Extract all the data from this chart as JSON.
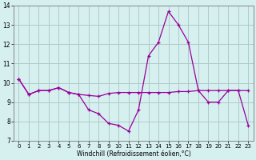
{
  "hours": [
    0,
    1,
    2,
    3,
    4,
    5,
    6,
    7,
    8,
    9,
    10,
    11,
    12,
    13,
    14,
    15,
    16,
    17,
    18,
    19,
    20,
    21,
    22,
    23
  ],
  "line1": [
    10.2,
    9.4,
    9.6,
    9.6,
    9.75,
    9.5,
    9.4,
    8.6,
    8.4,
    7.9,
    7.8,
    7.5,
    8.6,
    11.4,
    12.1,
    13.7,
    13.0,
    12.1,
    9.6,
    9.0,
    9.0,
    9.6,
    9.6,
    7.8
  ],
  "line2": [
    10.2,
    9.4,
    9.6,
    9.6,
    9.75,
    9.5,
    9.4,
    9.35,
    9.3,
    9.45,
    9.5,
    9.5,
    9.5,
    9.5,
    9.5,
    9.5,
    9.55,
    9.55,
    9.6,
    9.6,
    9.6,
    9.6,
    9.6,
    9.6
  ],
  "line_color": "#990099",
  "bg_color": "#d6f0f0",
  "grid_color": "#b0c8c8",
  "xlabel": "Windchill (Refroidissement éolien,°C)",
  "ylim": [
    7,
    14
  ],
  "xlim": [
    -0.5,
    23.5
  ],
  "yticks": [
    7,
    8,
    9,
    10,
    11,
    12,
    13,
    14
  ],
  "xticks": [
    0,
    1,
    2,
    3,
    4,
    5,
    6,
    7,
    8,
    9,
    10,
    11,
    12,
    13,
    14,
    15,
    16,
    17,
    18,
    19,
    20,
    21,
    22,
    23
  ]
}
